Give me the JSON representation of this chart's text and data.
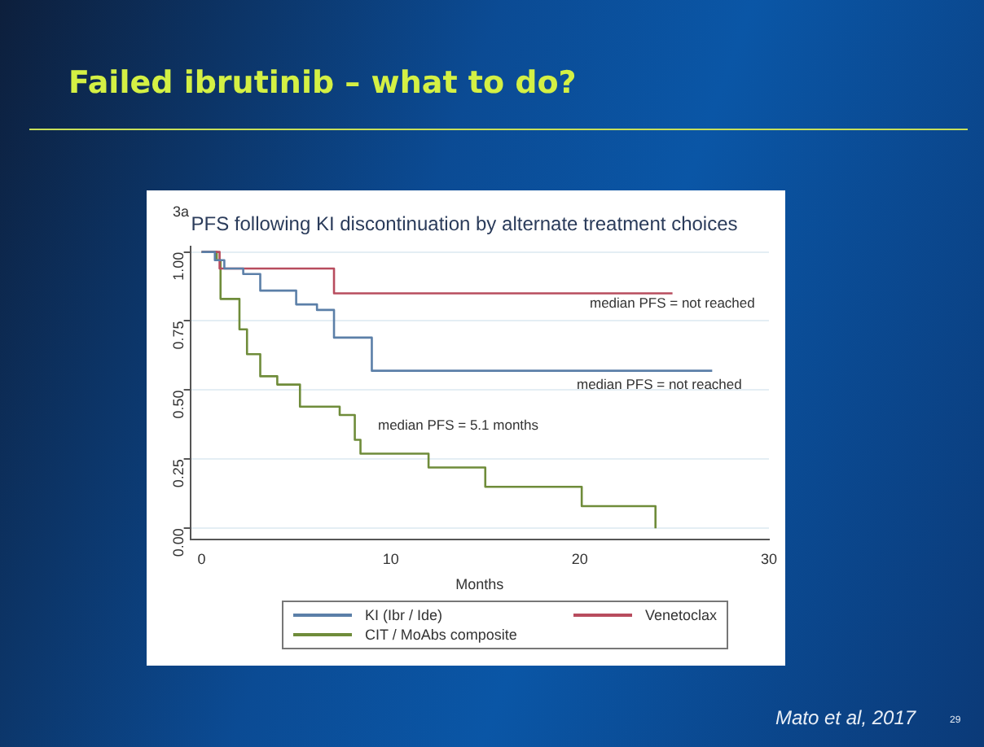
{
  "chart_data": {
    "type": "step",
    "title": "Failed ibrutinib – what to do?",
    "subtitle": "PFS following KI discontinuation by alternate treatment choices",
    "xlabel": "Months",
    "series": [
      {
        "name": "KI (Ibr / Ide)",
        "color": "#5b7fa8",
        "x": [
          0,
          0.7,
          1.2,
          2.2,
          3.1,
          5.0,
          6.1,
          7.0,
          9.0,
          27.0
        ],
        "values": [
          1,
          0.97,
          0.94,
          0.92,
          0.86,
          0.81,
          0.79,
          0.69,
          0.57,
          0.57
        ]
      },
      {
        "name": "Venetoclax",
        "color": "#b84c5e",
        "x": [
          0,
          0.95,
          7.0,
          24.9
        ],
        "values": [
          1,
          0.94,
          0.85,
          0.85
        ]
      },
      {
        "name": "CIT / MoAbs composite",
        "color": "#6f8c3a",
        "x": [
          0,
          0.8,
          1.0,
          2.0,
          2.4,
          3.1,
          4.0,
          5.2,
          7.3,
          8.1,
          8.4,
          12.0,
          15.0,
          20.1,
          24.0
        ],
        "values": [
          1,
          0.97,
          0.83,
          0.72,
          0.63,
          0.55,
          0.52,
          0.44,
          0.41,
          0.32,
          0.27,
          0.22,
          0.15,
          0.08,
          0
        ]
      }
    ],
    "xlim": [
      -0.6,
      30
    ],
    "xticks": [
      0,
      10,
      20,
      30
    ],
    "ylim": [
      -0.04,
      1.02
    ],
    "yticks": [
      {
        "value": 0,
        "label": "0.00"
      },
      {
        "value": 0.25,
        "label": "0.25"
      },
      {
        "value": 0.5,
        "label": "0.50"
      },
      {
        "value": 0.75,
        "label": "0.75"
      },
      {
        "value": 1,
        "label": "1.00"
      }
    ],
    "grid": "y",
    "legend": "bottom",
    "marker": "none",
    "line_style": "solid",
    "annotations": [
      "3a",
      "median PFS = not reached",
      "median PFS = not reached",
      "median PFS = 5.1 months",
      "Mato et al, 2017",
      "29"
    ]
  }
}
